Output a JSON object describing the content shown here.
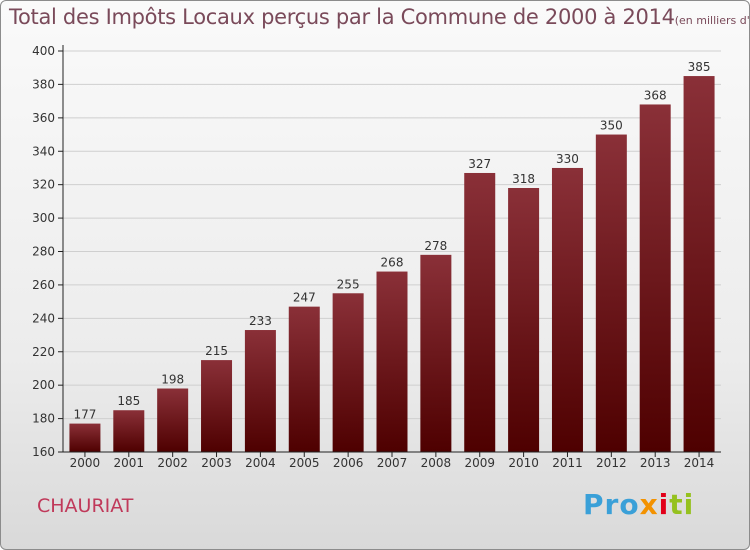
{
  "header": {
    "title": "Total des Impôts Locaux perçus par la Commune de 2000 à 2014",
    "unit": "(en milliers d'€)"
  },
  "footer": {
    "commune": "CHAURIAT",
    "logo_parts": [
      "Pro",
      "x",
      "i",
      "ti"
    ]
  },
  "colors": {
    "bar_top": "#8a3038",
    "bar_bottom": "#4e0000",
    "grid": "#cfcfcf",
    "axis": "#222222",
    "title": "#7a4a5a",
    "commune": "#c0395a"
  },
  "chart_data": {
    "type": "bar",
    "title": "Total des Impôts Locaux perçus par la Commune de 2000 à 2014",
    "xlabel": "",
    "ylabel": "",
    "categories": [
      "2000",
      "2001",
      "2002",
      "2003",
      "2004",
      "2005",
      "2006",
      "2007",
      "2008",
      "2009",
      "2010",
      "2011",
      "2012",
      "2013",
      "2014"
    ],
    "values": [
      177,
      185,
      198,
      215,
      233,
      247,
      255,
      268,
      278,
      327,
      318,
      330,
      350,
      368,
      385
    ],
    "ylim": [
      160,
      400
    ],
    "yticks": [
      160,
      180,
      200,
      220,
      240,
      260,
      280,
      300,
      320,
      340,
      360,
      380,
      400
    ],
    "grid": true
  }
}
